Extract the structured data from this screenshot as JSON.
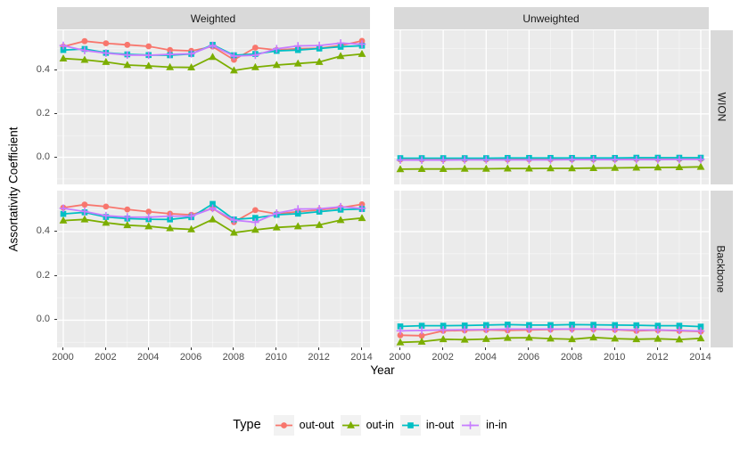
{
  "chart_data": {
    "type": "line",
    "xlabel": "Year",
    "ylabel": "Assortativity Coefficient",
    "x": [
      2000,
      2001,
      2002,
      2003,
      2004,
      2005,
      2006,
      2007,
      2008,
      2009,
      2010,
      2011,
      2012,
      2013,
      2014
    ],
    "x_tick_years": [
      2000,
      2002,
      2004,
      2006,
      2008,
      2010,
      2012,
      2014
    ],
    "x_tick_labels": [
      "2000",
      "2002",
      "2004",
      "2006",
      "2008",
      "2010",
      "2012",
      "2014"
    ],
    "y_ticks": [
      0.4,
      0.2,
      0.0
    ],
    "y_tick_labels": [
      "0.4",
      "0.2",
      "0.0"
    ],
    "ylim": [
      -0.125,
      0.585
    ],
    "grid": "on",
    "legend_position": "bottom",
    "facet_cols": [
      {
        "label": "Weighted"
      },
      {
        "label": "Unweighted"
      }
    ],
    "facet_rows": [
      {
        "label": "WION"
      },
      {
        "label": "Backbone"
      }
    ],
    "legend": {
      "title": "Type",
      "entries": [
        {
          "label": "out-out",
          "color": "#F8766D",
          "marker": "circle"
        },
        {
          "label": "out-in",
          "color": "#7CAE00",
          "marker": "triangle"
        },
        {
          "label": "in-out",
          "color": "#00BFC4",
          "marker": "square"
        },
        {
          "label": "in-in",
          "color": "#C77CFF",
          "marker": "plus"
        }
      ]
    },
    "panels": [
      {
        "row": "WION",
        "col": "Weighted",
        "series": [
          {
            "name": "out-out",
            "values": [
              0.51,
              0.535,
              0.525,
              0.518,
              0.511,
              0.494,
              0.49,
              0.51,
              0.449,
              0.505,
              0.494,
              0.5,
              0.502,
              0.515,
              0.536
            ]
          },
          {
            "name": "out-in",
            "values": [
              0.455,
              0.449,
              0.439,
              0.425,
              0.421,
              0.415,
              0.414,
              0.462,
              0.4,
              0.415,
              0.425,
              0.432,
              0.439,
              0.466,
              0.476
            ]
          },
          {
            "name": "in-out",
            "values": [
              0.494,
              0.499,
              0.481,
              0.474,
              0.471,
              0.47,
              0.476,
              0.518,
              0.47,
              0.476,
              0.49,
              0.494,
              0.501,
              0.509,
              0.514
            ]
          },
          {
            "name": "in-in",
            "values": [
              0.515,
              0.492,
              0.48,
              0.471,
              0.47,
              0.474,
              0.477,
              0.515,
              0.466,
              0.47,
              0.5,
              0.513,
              0.515,
              0.526,
              0.521
            ]
          }
        ]
      },
      {
        "row": "WION",
        "col": "Unweighted",
        "series": [
          {
            "name": "out-out",
            "values": [
              -0.01,
              -0.01,
              -0.01,
              -0.01,
              -0.01,
              -0.01,
              -0.009,
              -0.009,
              -0.009,
              -0.009,
              -0.009,
              -0.008,
              -0.008,
              -0.008,
              -0.008
            ]
          },
          {
            "name": "out-in",
            "values": [
              -0.055,
              -0.054,
              -0.054,
              -0.053,
              -0.053,
              -0.052,
              -0.052,
              -0.051,
              -0.051,
              -0.05,
              -0.049,
              -0.048,
              -0.047,
              -0.046,
              -0.044
            ]
          },
          {
            "name": "in-out",
            "values": [
              -0.004,
              -0.004,
              -0.004,
              -0.004,
              -0.004,
              -0.003,
              -0.003,
              -0.003,
              -0.003,
              -0.003,
              -0.003,
              -0.002,
              -0.002,
              -0.002,
              -0.002
            ]
          },
          {
            "name": "in-in",
            "values": [
              -0.013,
              -0.013,
              -0.013,
              -0.012,
              -0.012,
              -0.012,
              -0.012,
              -0.012,
              -0.011,
              -0.011,
              -0.011,
              -0.011,
              -0.011,
              -0.01,
              -0.01
            ]
          }
        ]
      },
      {
        "row": "Backbone",
        "col": "Weighted",
        "series": [
          {
            "name": "out-out",
            "values": [
              0.508,
              0.522,
              0.513,
              0.5,
              0.49,
              0.481,
              0.476,
              0.505,
              0.443,
              0.497,
              0.48,
              0.49,
              0.498,
              0.508,
              0.523
            ]
          },
          {
            "name": "out-in",
            "values": [
              0.45,
              0.455,
              0.44,
              0.429,
              0.424,
              0.415,
              0.41,
              0.455,
              0.395,
              0.408,
              0.419,
              0.424,
              0.43,
              0.452,
              0.461
            ]
          },
          {
            "name": "in-out",
            "values": [
              0.48,
              0.487,
              0.466,
              0.459,
              0.456,
              0.455,
              0.465,
              0.525,
              0.455,
              0.462,
              0.476,
              0.481,
              0.49,
              0.499,
              0.502
            ]
          },
          {
            "name": "in-in",
            "values": [
              0.505,
              0.491,
              0.472,
              0.466,
              0.465,
              0.47,
              0.47,
              0.505,
              0.452,
              0.442,
              0.483,
              0.502,
              0.503,
              0.512,
              0.505
            ]
          }
        ]
      },
      {
        "row": "Backbone",
        "col": "Unweighted",
        "series": [
          {
            "name": "out-out",
            "values": [
              -0.068,
              -0.07,
              -0.048,
              -0.046,
              -0.044,
              -0.046,
              -0.044,
              -0.042,
              -0.04,
              -0.041,
              -0.043,
              -0.048,
              -0.045,
              -0.048,
              -0.051
            ]
          },
          {
            "name": "out-in",
            "values": [
              -0.1,
              -0.097,
              -0.086,
              -0.088,
              -0.085,
              -0.08,
              -0.079,
              -0.083,
              -0.086,
              -0.078,
              -0.083,
              -0.086,
              -0.084,
              -0.087,
              -0.082
            ]
          },
          {
            "name": "in-out",
            "values": [
              -0.028,
              -0.025,
              -0.025,
              -0.024,
              -0.022,
              -0.02,
              -0.022,
              -0.022,
              -0.02,
              -0.021,
              -0.022,
              -0.023,
              -0.025,
              -0.025,
              -0.029
            ]
          },
          {
            "name": "in-in",
            "values": [
              -0.048,
              -0.046,
              -0.044,
              -0.043,
              -0.042,
              -0.04,
              -0.04,
              -0.04,
              -0.04,
              -0.04,
              -0.042,
              -0.044,
              -0.044,
              -0.046,
              -0.049
            ]
          }
        ]
      }
    ]
  },
  "colors": {
    "panel_bg": "#EBEBEB",
    "strip_bg": "#D9D9D9",
    "grid_major": "#FFFFFF",
    "grid_minor": "#FFFFFF",
    "tick_text": "#4D4D4D",
    "out_out": "#F8766D",
    "out_in": "#7CAE00",
    "in_out": "#00BFC4",
    "in_in": "#C77CFF",
    "legend_key_bg": "#F2F2F2"
  }
}
